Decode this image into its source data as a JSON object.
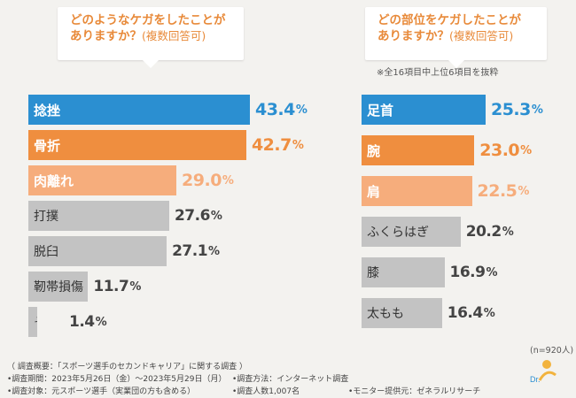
{
  "chart_data": [
    {
      "type": "bar",
      "orientation": "horizontal",
      "title_line1": "どのようなケガをしたことが",
      "title_line2": "ありますか？",
      "title_sub": "(複数回答可)",
      "categories": [
        "捻挫",
        "骨折",
        "肉離れ",
        "打撲",
        "脱臼",
        "靭帯損傷",
        "その他"
      ],
      "values": [
        43.4,
        42.7,
        29.0,
        27.6,
        27.1,
        11.7,
        1.4
      ],
      "value_labels": [
        "43.4",
        "42.7",
        "29.0",
        "27.6",
        "27.1",
        "11.7",
        "1.4"
      ],
      "unit": "%",
      "xlim": [
        0,
        50
      ]
    },
    {
      "type": "bar",
      "orientation": "horizontal",
      "title_line1": "どの部位をケガしたことが",
      "title_line2": "ありますか？",
      "title_sub": "(複数回答可)",
      "note": "※全16項目中上位6項目を抜粋",
      "categories": [
        "足首",
        "腕",
        "肩",
        "ふくらはぎ",
        "膝",
        "太もも"
      ],
      "values": [
        25.3,
        23.0,
        22.5,
        20.2,
        16.9,
        16.4
      ],
      "value_labels": [
        "25.3",
        "23.0",
        "22.5",
        "20.2",
        "16.9",
        "16.4"
      ],
      "unit": "%",
      "xlim": [
        0,
        30
      ]
    }
  ],
  "sample_note": "(n=920人)",
  "footer": {
    "overview": "（ 調査概要：「スポーツ選手のセカンドキャリア」に関する調査 ）",
    "period": "•調査期間：2023年5月26日（金）～2023年5月29日（月）",
    "method": "•調査方法：インターネット調査",
    "target": "•調査対象：元スポーツ選手（実業団の方も含める）",
    "count": "•調査人数1,007名",
    "provider": "•モニター提供元：ゼネラルリサーチ"
  },
  "logo_text": "Dr.",
  "colors": {
    "rank1": "#2b8fd1",
    "rank2": "#ef8e3f",
    "rank3": "#f6ad7c",
    "other": "#c3c3c3",
    "title": "#e88a3a"
  }
}
